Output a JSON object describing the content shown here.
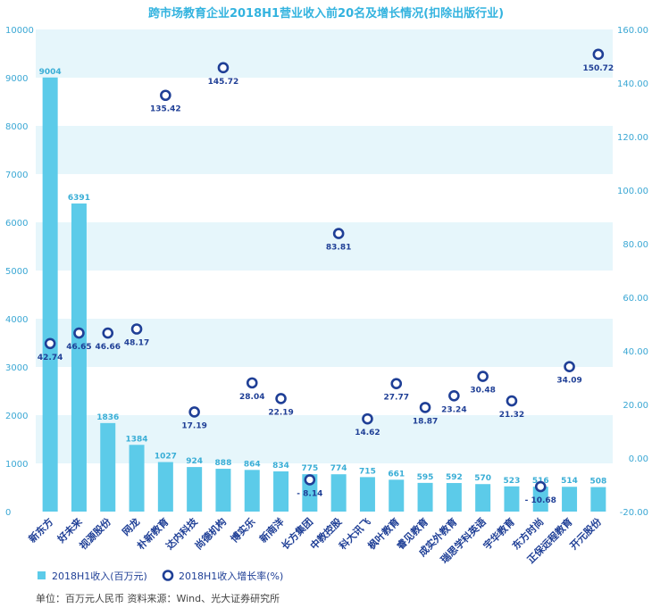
{
  "colors": {
    "bar": "#5ccbe9",
    "bar_label": "#3aaed6",
    "marker": "#1f3f96",
    "band": "#e6f6fb",
    "title": "#33b3df",
    "tick": "#3aa7d4",
    "category": "#1f3f96",
    "growth_label": "#1f3f96",
    "footer": "#444444"
  },
  "chart_data": {
    "type": "bar+scatter",
    "title": "跨市场教育企业2018H1营业收入前20名及增长情况(扣除出版行业)",
    "categories": [
      "新东方",
      "好未来",
      "视源股份",
      "网龙",
      "朴新教育",
      "达内科技",
      "尚德机构",
      "博实乐",
      "新南洋",
      "长方集团",
      "中教控股",
      "科大讯飞",
      "枫叶教育",
      "睿见教育",
      "成实外教育",
      "瑞思学科英语",
      "宇华教育",
      "东方时尚",
      "正保远程教育",
      "开元股份"
    ],
    "series": [
      {
        "name": "2018H1收入(百万元)",
        "axis": "left",
        "type": "bar",
        "values": [
          9004,
          6391,
          1836,
          1384,
          1027,
          924,
          888,
          864,
          834,
          775,
          774,
          715,
          661,
          595,
          592,
          570,
          523,
          516,
          514,
          508
        ]
      },
      {
        "name": "2018H1收入增长率(%)",
        "axis": "right",
        "type": "scatter",
        "values": [
          42.74,
          46.65,
          46.66,
          48.17,
          135.42,
          17.19,
          145.72,
          28.04,
          22.19,
          -8.14,
          83.81,
          14.62,
          27.77,
          18.87,
          23.24,
          30.48,
          21.32,
          -10.68,
          34.09,
          150.72
        ]
      }
    ],
    "ylim_left": [
      0,
      10000
    ],
    "yticks_left": [
      "0",
      "1000",
      "2000",
      "3000",
      "4000",
      "5000",
      "6000",
      "7000",
      "8000",
      "9000",
      "10000"
    ],
    "ylim_right": [
      -20,
      160
    ],
    "yticks_right": [
      "-20.00",
      "0.00",
      "20.00",
      "40.00",
      "60.00",
      "80.00",
      "100.00",
      "120.00",
      "140.00",
      "160.00"
    ],
    "bar_labels": [
      "9004",
      "6391",
      "1836",
      "1384",
      "1027",
      "924",
      "888",
      "864",
      "834",
      "775",
      "774",
      "715",
      "661",
      "595",
      "592",
      "570",
      "523",
      "516",
      "514",
      "508"
    ],
    "growth_labels": [
      "42.74",
      "46.65",
      "46.66",
      "48.17",
      "135.42",
      "17.19",
      "145.72",
      "28.04",
      "22.19",
      "- 8.14",
      "83.81",
      "14.62",
      "27.77",
      "18.87",
      "23.24",
      "30.48",
      "21.32",
      "- 10.68",
      "34.09",
      "150.72"
    ],
    "legend": {
      "bar": "2018H1收入(百万元)",
      "marker": "2018H1收入增长率(%)"
    },
    "footer": "单位：百万元人民币    资料来源：Wind、光大证券研究所",
    "grid": "alternating horizontal bands",
    "legend_position": "bottom-left"
  }
}
